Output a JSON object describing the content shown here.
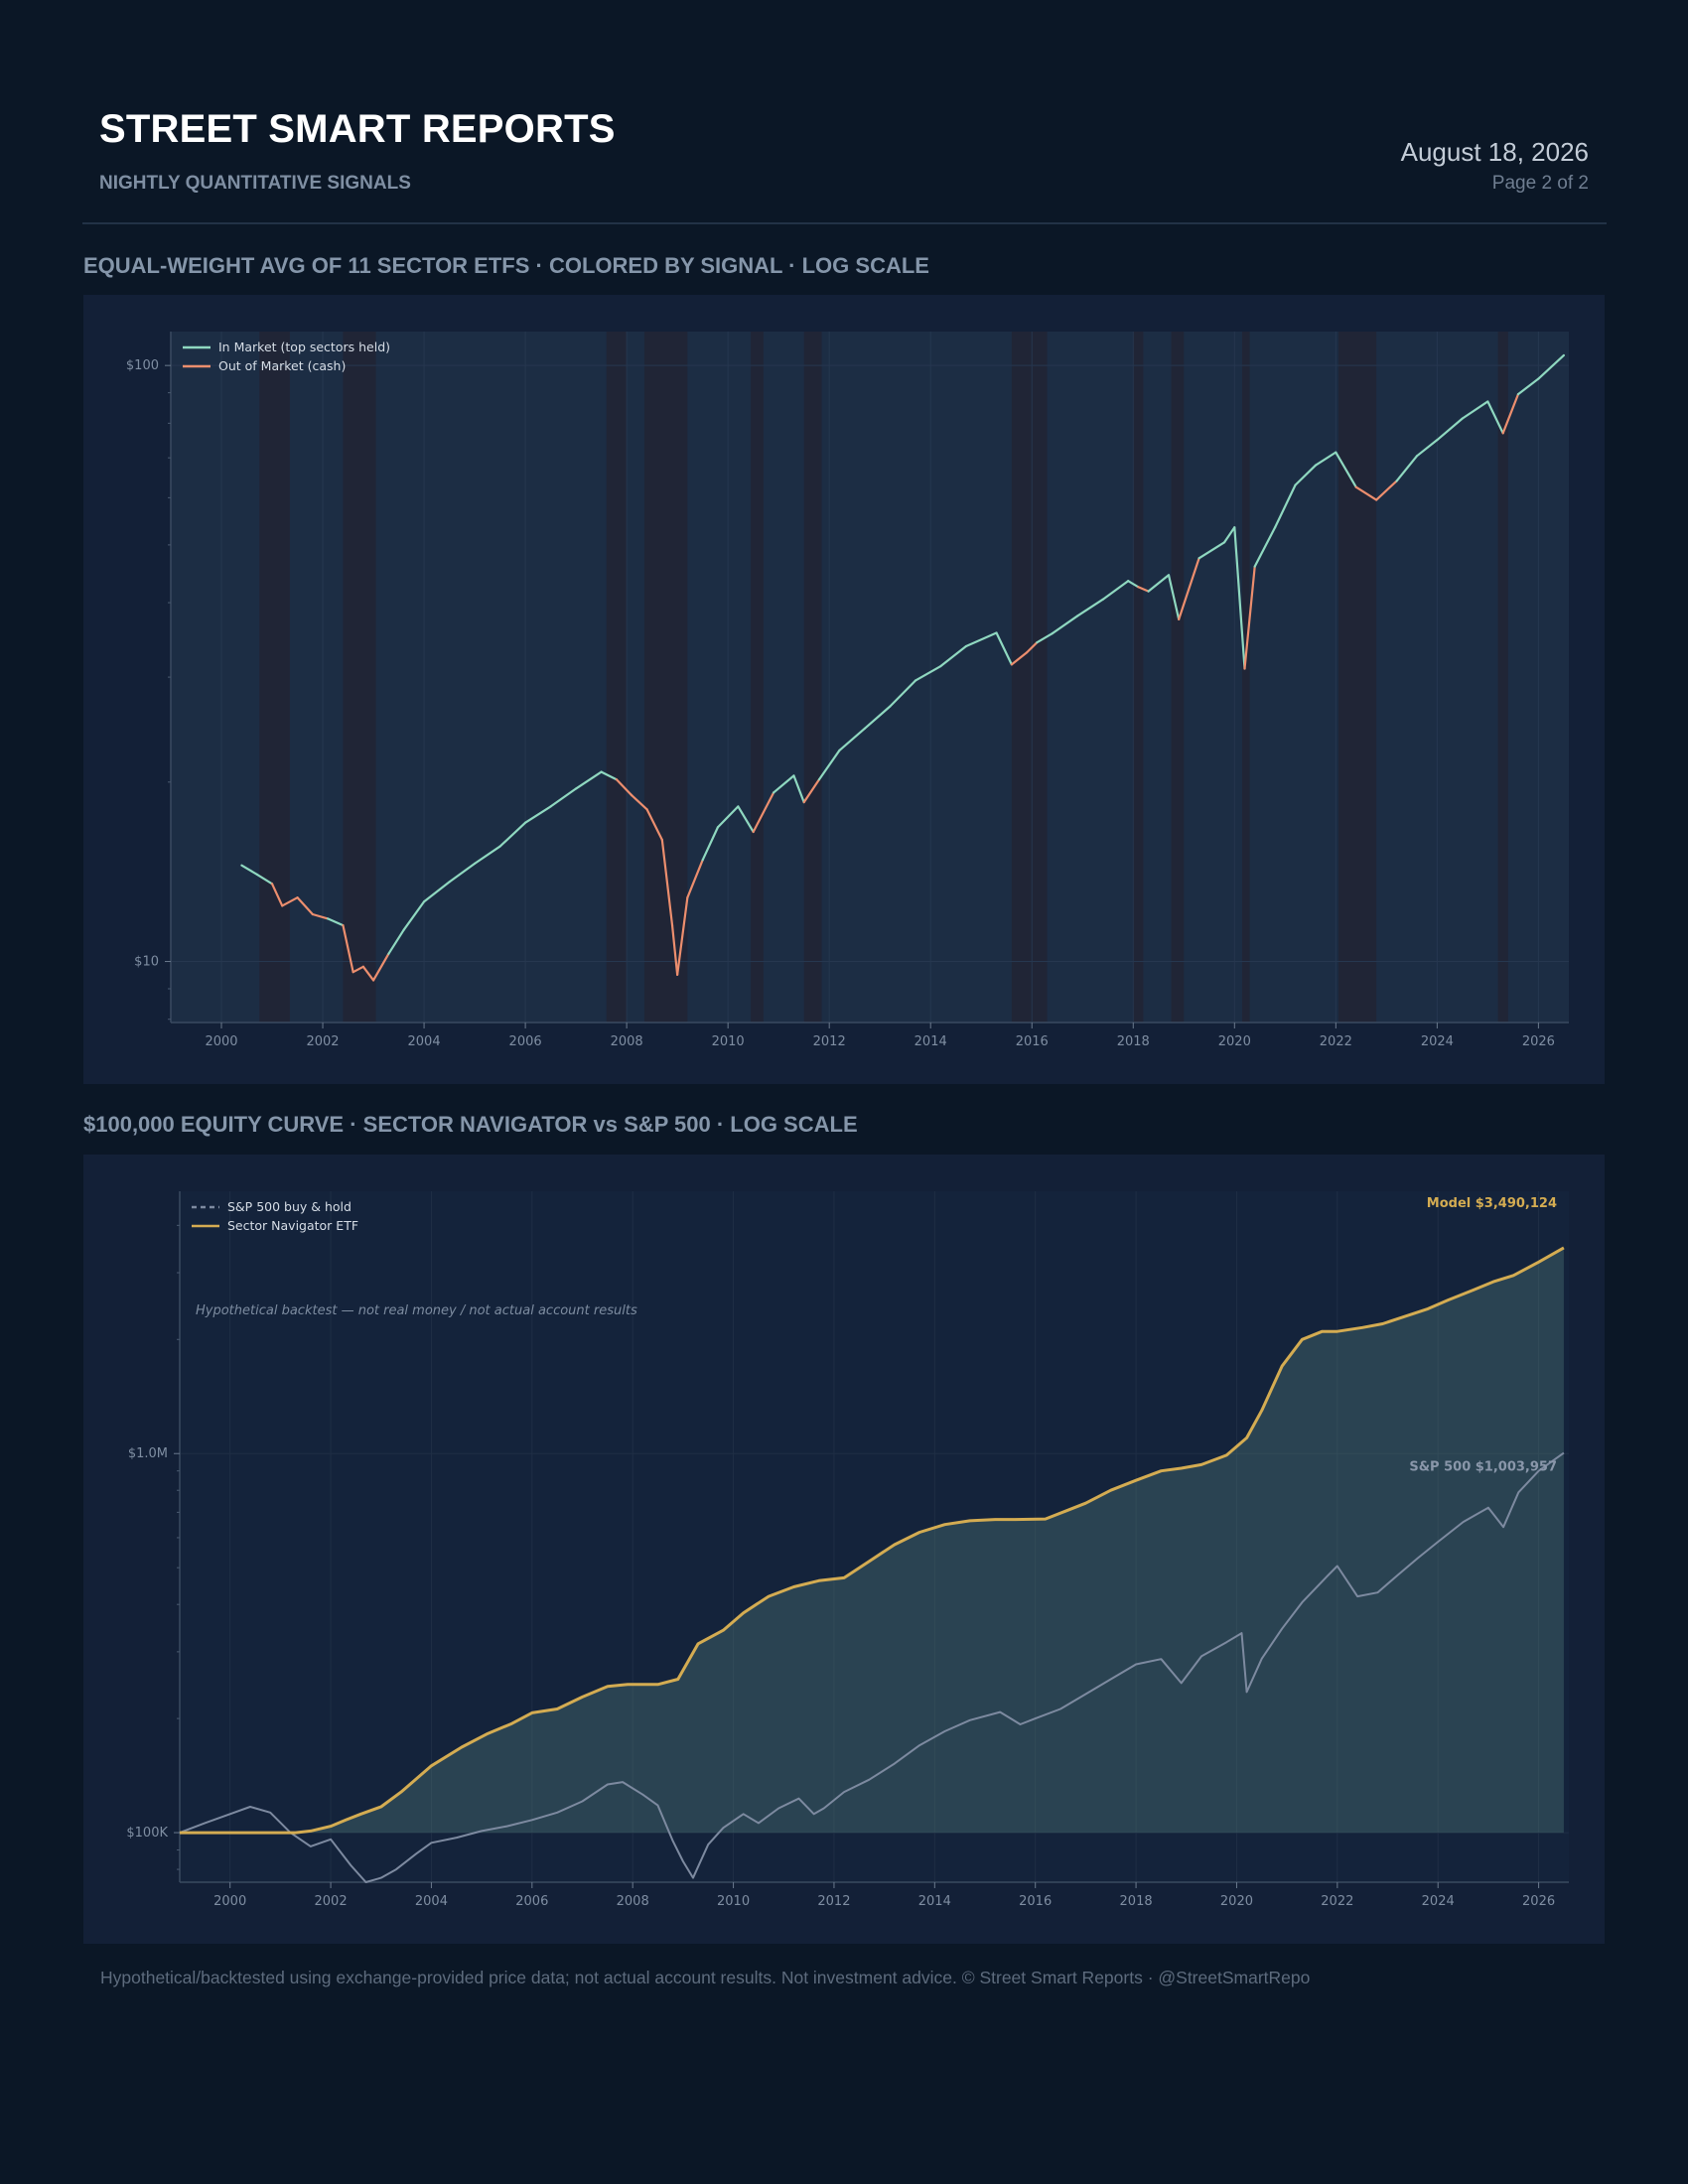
{
  "header": {
    "title": "STREET SMART REPORTS",
    "subtitle": "NIGHTLY QUANTITATIVE SIGNALS",
    "date": "August 18, 2026",
    "page": "Page 2 of 2"
  },
  "colors": {
    "in_market": "#8fd8c0",
    "out_of_market": "#ec8e6e",
    "model": "#d4ac52",
    "sp500": "#7d8aa0",
    "chart_bg": "#1c2d44",
    "panel_bg": "#132037"
  },
  "chart_data": [
    {
      "type": "line",
      "title": "EQUAL-WEIGHT AVG OF 11 SECTOR ETFS · COLORED BY SIGNAL · LOG SCALE",
      "y_scale": "log",
      "xlim": [
        1999.0,
        2026.6
      ],
      "ylim": [
        7.9,
        114
      ],
      "x_ticks": [
        2000,
        2002,
        2004,
        2006,
        2008,
        2010,
        2012,
        2014,
        2016,
        2018,
        2020,
        2022,
        2024,
        2026
      ],
      "y_ticks": [
        {
          "value": 10,
          "label": "$10"
        },
        {
          "value": 100,
          "label": "$100"
        }
      ],
      "legend": {
        "placement": "top-left",
        "entries": [
          {
            "label": "In Market (top sectors held)",
            "color": "#8fd8c0"
          },
          {
            "label": "Out of Market (cash)",
            "color": "#ec8e6e"
          }
        ]
      },
      "series": [
        {
          "name": "Equal-weight average",
          "x": [
            2000.4,
            2000.7,
            2001.0,
            2001.2,
            2001.5,
            2001.8,
            2002.1,
            2002.4,
            2002.6,
            2002.8,
            2003.0,
            2003.3,
            2003.6,
            2004.0,
            2004.5,
            2005.0,
            2005.5,
            2006.0,
            2006.5,
            2007.0,
            2007.5,
            2007.8,
            2008.1,
            2008.4,
            2008.7,
            2008.9,
            2009.0,
            2009.2,
            2009.5,
            2009.8,
            2010.2,
            2010.5,
            2010.9,
            2011.3,
            2011.5,
            2011.8,
            2012.2,
            2012.7,
            2013.2,
            2013.7,
            2014.2,
            2014.7,
            2015.3,
            2015.6,
            2015.9,
            2016.1,
            2016.4,
            2016.9,
            2017.4,
            2017.9,
            2018.1,
            2018.3,
            2018.7,
            2018.9,
            2019.3,
            2019.8,
            2020.0,
            2020.2,
            2020.4,
            2020.8,
            2021.2,
            2021.6,
            2022.0,
            2022.4,
            2022.8,
            2023.2,
            2023.6,
            2024.0,
            2024.5,
            2025.0,
            2025.3,
            2025.6,
            2026.0,
            2026.5
          ],
          "y": [
            14.5,
            14.0,
            13.5,
            12.4,
            12.8,
            12.0,
            11.8,
            11.5,
            9.6,
            9.8,
            9.3,
            10.3,
            11.3,
            12.6,
            13.6,
            14.6,
            15.6,
            17.1,
            18.2,
            19.5,
            20.8,
            20.2,
            19.0,
            18.0,
            16.0,
            11.5,
            9.5,
            12.8,
            14.8,
            16.8,
            18.2,
            16.5,
            19.2,
            20.5,
            18.5,
            20.2,
            22.6,
            24.6,
            26.8,
            29.6,
            31.3,
            33.8,
            35.6,
            31.5,
            33.0,
            34.3,
            35.5,
            38.0,
            40.5,
            43.5,
            42.5,
            41.8,
            44.5,
            37.5,
            47.5,
            50.5,
            53.5,
            31.0,
            46.0,
            53.5,
            63.0,
            68.0,
            71.5,
            62.5,
            59.5,
            64.0,
            70.5,
            75.0,
            81.5,
            87.0,
            77.0,
            89.5,
            95.0,
            104.0
          ],
          "signal": [
            "in",
            "in",
            "out",
            "out",
            "out",
            "out",
            "in",
            "out",
            "out",
            "out",
            "out",
            "in",
            "in",
            "in",
            "in",
            "in",
            "in",
            "in",
            "in",
            "in",
            "in",
            "out",
            "out",
            "out",
            "out",
            "out",
            "out",
            "out",
            "in",
            "in",
            "in",
            "out",
            "in",
            "in",
            "out",
            "in",
            "in",
            "in",
            "in",
            "in",
            "in",
            "in",
            "in",
            "out",
            "out",
            "in",
            "in",
            "in",
            "in",
            "in",
            "out",
            "in",
            "in",
            "out",
            "in",
            "in",
            "in",
            "out",
            "in",
            "in",
            "in",
            "in",
            "in",
            "out",
            "out",
            "in",
            "in",
            "in",
            "in",
            "in",
            "out",
            "in",
            "in",
            "in"
          ]
        }
      ],
      "cash_periods": [
        [
          2000.75,
          2001.35
        ],
        [
          2002.4,
          2003.05
        ],
        [
          2007.6,
          2008.0
        ],
        [
          2008.35,
          2009.2
        ],
        [
          2010.45,
          2010.7
        ],
        [
          2011.5,
          2011.85
        ],
        [
          2015.6,
          2016.3
        ],
        [
          2018.0,
          2018.2
        ],
        [
          2018.75,
          2019.0
        ],
        [
          2020.15,
          2020.3
        ],
        [
          2022.05,
          2022.8
        ],
        [
          2025.2,
          2025.4
        ]
      ]
    },
    {
      "type": "line",
      "title": "$100,000 EQUITY CURVE · SECTOR NAVIGATOR vs S&P 500 · LOG SCALE",
      "y_scale": "log",
      "xlim": [
        1999.0,
        2026.6
      ],
      "ylim": [
        74000,
        4920000
      ],
      "x_ticks": [
        2000,
        2002,
        2004,
        2006,
        2008,
        2010,
        2012,
        2014,
        2016,
        2018,
        2020,
        2022,
        2024,
        2026
      ],
      "y_ticks": [
        {
          "value": 100000,
          "label": "$100K"
        },
        {
          "value": 1000000,
          "label": "$1.0M"
        }
      ],
      "legend": {
        "placement": "top-left",
        "entries": [
          {
            "label": "S&P 500 buy & hold",
            "color": "#7d8aa0",
            "style": "dashed"
          },
          {
            "label": "Sector Navigator ETF",
            "color": "#d4ac52",
            "style": "solid"
          }
        ]
      },
      "annotation": "Hypothetical backtest — not real money / not actual account results",
      "end_labels": {
        "model": {
          "label": "Model",
          "value": "$3,490,124"
        },
        "sp500": {
          "label": "S&P 500",
          "value": "$1,003,957"
        }
      },
      "series": [
        {
          "name": "S&P 500 buy & hold",
          "x": [
            1999.0,
            1999.5,
            2000.0,
            2000.4,
            2000.8,
            2001.2,
            2001.6,
            2002.0,
            2002.4,
            2002.7,
            2003.0,
            2003.3,
            2003.7,
            2004.0,
            2004.5,
            2005.0,
            2005.5,
            2006.0,
            2006.5,
            2007.0,
            2007.5,
            2007.8,
            2008.2,
            2008.5,
            2008.8,
            2009.0,
            2009.2,
            2009.5,
            2009.8,
            2010.2,
            2010.5,
            2010.9,
            2011.3,
            2011.6,
            2011.8,
            2012.2,
            2012.7,
            2013.2,
            2013.7,
            2014.2,
            2014.7,
            2015.3,
            2015.7,
            2016.0,
            2016.5,
            2017.0,
            2017.5,
            2018.0,
            2018.5,
            2018.9,
            2019.3,
            2019.8,
            2020.1,
            2020.2,
            2020.5,
            2020.9,
            2021.3,
            2021.8,
            2022.0,
            2022.4,
            2022.8,
            2023.2,
            2023.6,
            2024.0,
            2024.5,
            2025.0,
            2025.3,
            2025.6,
            2026.0,
            2026.5
          ],
          "y": [
            100000,
            106000,
            112000,
            117000,
            113000,
            100000,
            92000,
            96000,
            82000,
            74000,
            76000,
            80000,
            88000,
            94000,
            97000,
            101000,
            104000,
            108000,
            113000,
            121000,
            134000,
            136000,
            126000,
            118000,
            95000,
            84000,
            76000,
            93000,
            103000,
            112000,
            106000,
            116000,
            123000,
            112000,
            116000,
            128000,
            138000,
            152000,
            170000,
            185000,
            198000,
            208000,
            193000,
            200000,
            212000,
            232000,
            254000,
            278000,
            287000,
            248000,
            292000,
            318000,
            336000,
            235000,
            288000,
            345000,
            405000,
            475000,
            505000,
            420000,
            430000,
            478000,
            530000,
            585000,
            660000,
            720000,
            640000,
            790000,
            900000,
            1003957
          ]
        },
        {
          "name": "Sector Navigator ETF",
          "x": [
            1999.0,
            2000.5,
            2001.3,
            2001.6,
            2002.0,
            2002.3,
            2002.6,
            2003.0,
            2003.4,
            2004.0,
            2004.6,
            2005.1,
            2005.6,
            2006.0,
            2006.5,
            2007.0,
            2007.5,
            2007.9,
            2008.5,
            2008.9,
            2009.3,
            2009.8,
            2010.2,
            2010.7,
            2011.2,
            2011.7,
            2012.2,
            2012.7,
            2013.2,
            2013.7,
            2014.2,
            2014.7,
            2015.2,
            2015.6,
            2016.2,
            2016.6,
            2017.0,
            2017.5,
            2018.0,
            2018.5,
            2018.9,
            2019.3,
            2019.8,
            2020.2,
            2020.5,
            2020.9,
            2021.3,
            2021.7,
            2022.0,
            2022.5,
            2022.9,
            2023.3,
            2023.8,
            2024.2,
            2024.7,
            2025.1,
            2025.5,
            2026.0,
            2026.5
          ],
          "y": [
            100000,
            100000,
            100000,
            101000,
            104000,
            108000,
            112000,
            117000,
            128000,
            150000,
            168000,
            182000,
            194000,
            207000,
            212000,
            228000,
            243000,
            246000,
            246000,
            254000,
            315000,
            342000,
            380000,
            420000,
            445000,
            462000,
            470000,
            520000,
            575000,
            620000,
            650000,
            665000,
            670000,
            670000,
            672000,
            705000,
            740000,
            800000,
            850000,
            900000,
            915000,
            935000,
            990000,
            1100000,
            1300000,
            1700000,
            2000000,
            2100000,
            2100000,
            2150000,
            2200000,
            2290000,
            2410000,
            2540000,
            2700000,
            2840000,
            2950000,
            3200000,
            3490124
          ]
        }
      ]
    }
  ],
  "footer": "Hypothetical/backtested using exchange-provided price data; not actual account results. Not investment advice. © Street Smart Reports · @StreetSmartRepo"
}
